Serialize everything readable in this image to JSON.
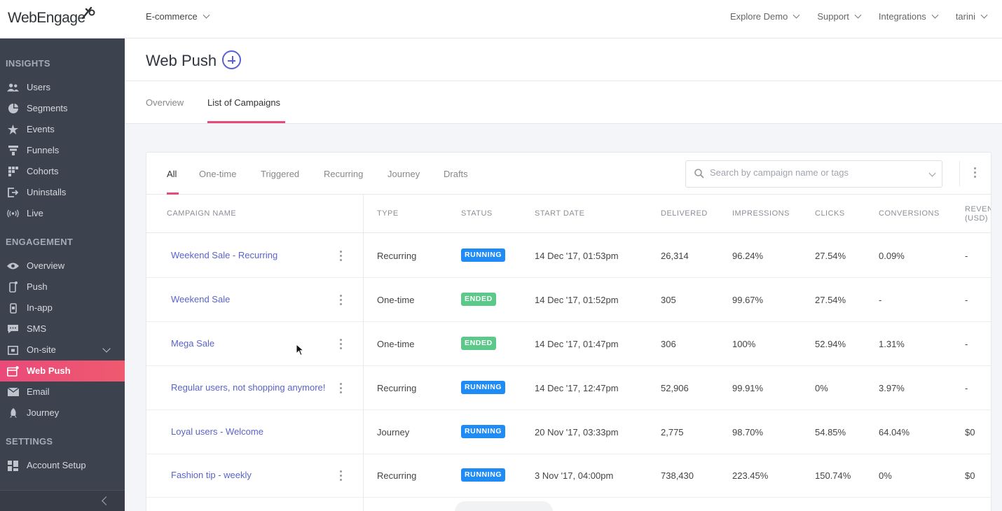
{
  "brand": {
    "logo_text": "WebEngage",
    "accent": "#e94a79",
    "link": "#5a63c9",
    "sidebar_bg": "#3d434e"
  },
  "topbar": {
    "project": "E-commerce",
    "nav": [
      "Explore Demo",
      "Support",
      "Integrations",
      "tarini"
    ]
  },
  "sidebar": {
    "sections": [
      {
        "title": "INSIGHTS",
        "items": [
          {
            "label": "Users",
            "icon": "users-icon"
          },
          {
            "label": "Segments",
            "icon": "pie-icon"
          },
          {
            "label": "Events",
            "icon": "star-icon"
          },
          {
            "label": "Funnels",
            "icon": "funnel-icon"
          },
          {
            "label": "Cohorts",
            "icon": "grid-icon"
          },
          {
            "label": "Uninstalls",
            "icon": "exit-icon"
          },
          {
            "label": "Live",
            "icon": "broadcast-icon"
          }
        ]
      },
      {
        "title": "ENGAGEMENT",
        "items": [
          {
            "label": "Overview",
            "icon": "eye-icon"
          },
          {
            "label": "Push",
            "icon": "phone-icon"
          },
          {
            "label": "In-app",
            "icon": "inapp-icon"
          },
          {
            "label": "SMS",
            "icon": "chat-icon"
          },
          {
            "label": "On-site",
            "icon": "onsite-icon"
          },
          {
            "label": "Web Push",
            "icon": "browser-icon"
          },
          {
            "label": "Email",
            "icon": "mail-icon"
          },
          {
            "label": "Journey",
            "icon": "rocket-icon"
          }
        ]
      },
      {
        "title": "SETTINGS",
        "items": [
          {
            "label": "Account Setup",
            "icon": "tiles-icon"
          }
        ]
      }
    ],
    "active": "Web Push"
  },
  "page": {
    "title": "Web Push",
    "tabs": [
      "Overview",
      "List of Campaigns"
    ],
    "active_tab": "List of Campaigns"
  },
  "campaigns": {
    "filter_tabs": [
      "All",
      "One-time",
      "Triggered",
      "Recurring",
      "Journey",
      "Drafts"
    ],
    "active_filter": "All",
    "search_placeholder": "Search by campaign name or tags",
    "columns": [
      "CAMPAIGN NAME",
      "TYPE",
      "STATUS",
      "START DATE",
      "DELIVERED",
      "IMPRESSIONS",
      "CLICKS",
      "CONVERSIONS",
      "REVEN",
      "(USD)"
    ],
    "rows": [
      {
        "name": "Weekend Sale - Recurring",
        "type": "Recurring",
        "status": "RUNNING",
        "start": "14 Dec '17, 01:53pm",
        "delivered": "26,314",
        "impressions": "96.24%",
        "clicks": "27.54%",
        "conversions": "0.09%",
        "revenue": "-",
        "menu": true
      },
      {
        "name": "Weekend Sale",
        "type": "One-time",
        "status": "ENDED",
        "start": "14 Dec '17, 01:52pm",
        "delivered": "305",
        "impressions": "99.67%",
        "clicks": "27.54%",
        "conversions": "-",
        "revenue": "-",
        "menu": true
      },
      {
        "name": "Mega Sale",
        "type": "One-time",
        "status": "ENDED",
        "start": "14 Dec '17, 01:47pm",
        "delivered": "306",
        "impressions": "100%",
        "clicks": "52.94%",
        "conversions": "1.31%",
        "revenue": "-",
        "menu": true
      },
      {
        "name": "Regular users, not shopping anymore!",
        "type": "Recurring",
        "status": "RUNNING",
        "start": "14 Dec '17, 12:47pm",
        "delivered": "52,906",
        "impressions": "99.91%",
        "clicks": "0%",
        "conversions": "3.97%",
        "revenue": "-",
        "menu": true
      },
      {
        "name": "Loyal users - Welcome",
        "type": "Journey",
        "status": "RUNNING",
        "start": "20 Nov '17, 03:33pm",
        "delivered": "2,775",
        "impressions": "98.70%",
        "clicks": "54.85%",
        "conversions": "64.04%",
        "revenue": "$0",
        "menu": false
      },
      {
        "name": "Fashion tip - weekly",
        "type": "Recurring",
        "status": "RUNNING",
        "start": "3 Nov '17, 04:00pm",
        "delivered": "738,430",
        "impressions": "223.45%",
        "clicks": "150.74%",
        "conversions": "0%",
        "revenue": "$0",
        "menu": true
      }
    ]
  }
}
